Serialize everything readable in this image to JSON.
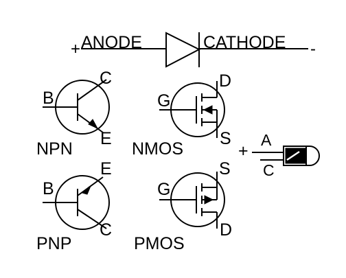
{
  "diode": {
    "plus": "+",
    "anode": "ANODE",
    "cathode": "CATHODE",
    "minus": "-"
  },
  "npn": {
    "base": "B",
    "collector": "C",
    "emitter": "E",
    "name": "NPN"
  },
  "pnp": {
    "base": "B",
    "emitter": "E",
    "collector": "C",
    "name": "PNP"
  },
  "nmos": {
    "gate": "G",
    "drain": "D",
    "source": "S",
    "name": "NMOS"
  },
  "pmos": {
    "gate": "G",
    "source": "S",
    "drain": "D",
    "name": "PMOS"
  },
  "led": {
    "plus": "+",
    "anode": "A",
    "cathode": "C"
  },
  "colors": {
    "ink": "#000000",
    "background": "#ffffff"
  }
}
